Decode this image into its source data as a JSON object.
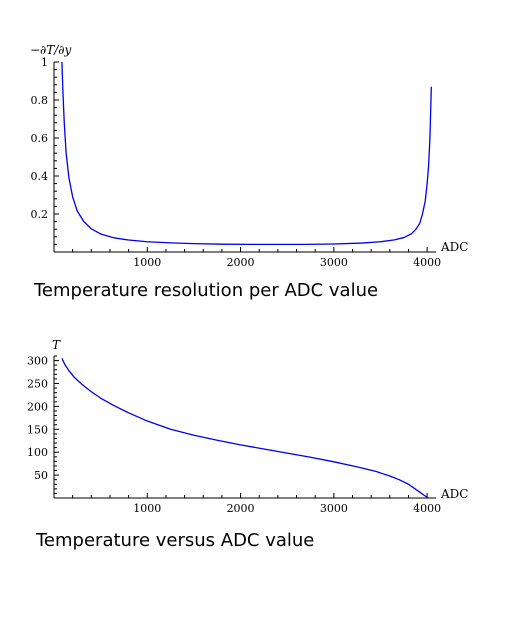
{
  "chart_data": [
    {
      "type": "line",
      "title": "",
      "caption": "Temperature resolution per ADC value",
      "xlabel": "ADC",
      "ylabel": "−∂T/∂y",
      "xlim": [
        0,
        4095
      ],
      "ylim": [
        0,
        1
      ],
      "x_ticks": [
        "1000",
        "2000",
        "3000",
        "4000"
      ],
      "y_ticks": [
        "0.2",
        "0.4",
        "0.6",
        "0.8",
        "1"
      ],
      "series": [
        {
          "color": "#0000ee",
          "x": [
            85,
            95,
            110,
            130,
            160,
            200,
            250,
            320,
            400,
            500,
            650,
            800,
            1000,
            1250,
            1500,
            1800,
            2100,
            2400,
            2700,
            3000,
            3300,
            3500,
            3650,
            3750,
            3830,
            3880,
            3920,
            3950,
            3980,
            4000,
            4015,
            4030,
            4045
          ],
          "y": [
            1.0,
            0.85,
            0.68,
            0.52,
            0.39,
            0.29,
            0.215,
            0.16,
            0.122,
            0.095,
            0.074,
            0.063,
            0.054,
            0.048,
            0.044,
            0.041,
            0.04,
            0.04,
            0.04,
            0.042,
            0.047,
            0.054,
            0.064,
            0.076,
            0.095,
            0.12,
            0.15,
            0.2,
            0.27,
            0.36,
            0.45,
            0.6,
            0.87
          ]
        }
      ]
    },
    {
      "type": "line",
      "title": "",
      "caption": "Temperature versus ADC value",
      "xlabel": "ADC",
      "ylabel": "T",
      "xlim": [
        0,
        4095
      ],
      "ylim": [
        0,
        310
      ],
      "x_ticks": [
        "1000",
        "2000",
        "3000",
        "4000"
      ],
      "y_ticks": [
        "50",
        "100",
        "150",
        "200",
        "250",
        "300"
      ],
      "series": [
        {
          "color": "#0000ee",
          "x": [
            85,
            120,
            160,
            220,
            300,
            400,
            500,
            650,
            800,
            1000,
            1250,
            1500,
            1750,
            2000,
            2250,
            2500,
            2750,
            3000,
            3250,
            3450,
            3600,
            3700,
            3800,
            3870,
            3920,
            3960,
            3990,
            4010
          ],
          "y": [
            305,
            290,
            278,
            263,
            248,
            232,
            218,
            201,
            186,
            168,
            150,
            137,
            126,
            116,
            107,
            98,
            89,
            79,
            68,
            58,
            48,
            40,
            30,
            20,
            13,
            7,
            3,
            0
          ]
        }
      ]
    }
  ]
}
